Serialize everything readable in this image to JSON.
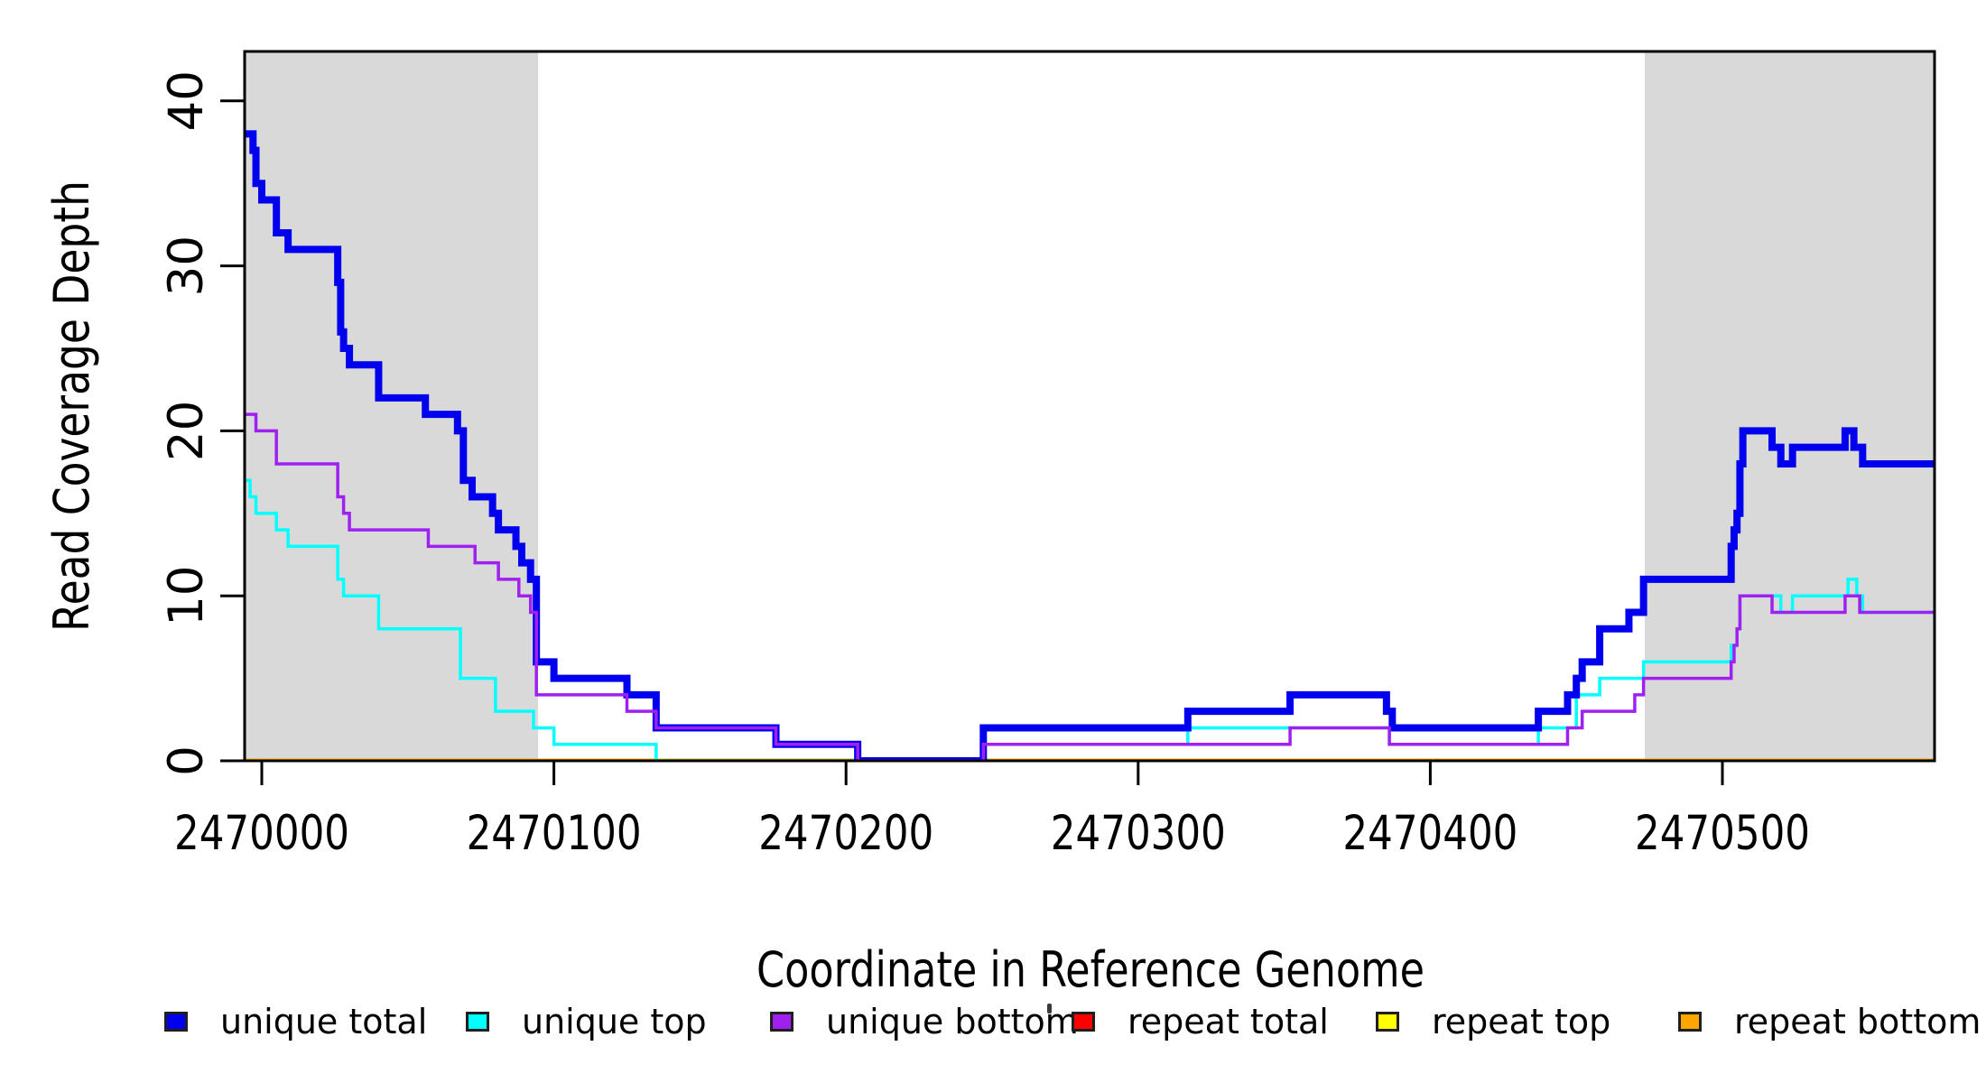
{
  "chart_data": {
    "type": "line",
    "subtype": "step-coverage",
    "title": "",
    "xlabel": "Coordinate in Reference Genome",
    "ylabel": "Read Coverage Depth",
    "xlim": [
      2469994,
      2470573
    ],
    "ylim": [
      0,
      43
    ],
    "x_ticks": [
      2470000,
      2470100,
      2470200,
      2470300,
      2470400,
      2470500
    ],
    "y_ticks": [
      0,
      10,
      20,
      30,
      40
    ],
    "grid": false,
    "background_color": "#FFFFFF",
    "band_color": "#D9D9D9",
    "axis_color": "#000000",
    "shaded_regions": [
      {
        "x0": 2469994,
        "x1": 2470094.6
      },
      {
        "x0": 2470473.4,
        "x1": 2470573
      }
    ],
    "draw_order": [
      "repeat total",
      "repeat top",
      "repeat bottom",
      "unique top",
      "unique total",
      "unique bottom"
    ],
    "series": [
      {
        "name": "unique total",
        "color": "#0000EE",
        "width": 8,
        "steps": [
          [
            2469994,
            38
          ],
          [
            2469997,
            37
          ],
          [
            2469998,
            35
          ],
          [
            2470000,
            34
          ],
          [
            2470005,
            32
          ],
          [
            2470009,
            31
          ],
          [
            2470026,
            29
          ],
          [
            2470027,
            26
          ],
          [
            2470028,
            25
          ],
          [
            2470030,
            24
          ],
          [
            2470040,
            22
          ],
          [
            2470056,
            21
          ],
          [
            2470067,
            20
          ],
          [
            2470069,
            17
          ],
          [
            2470072,
            16
          ],
          [
            2470079,
            15
          ],
          [
            2470081,
            14
          ],
          [
            2470087,
            13
          ],
          [
            2470089,
            12
          ],
          [
            2470092,
            11
          ],
          [
            2470094,
            6
          ],
          [
            2470100,
            5
          ],
          [
            2470125,
            4
          ],
          [
            2470135,
            2
          ],
          [
            2470176,
            1
          ],
          [
            2470204,
            0
          ],
          [
            2470247,
            2
          ],
          [
            2470317,
            3
          ],
          [
            2470352,
            4
          ],
          [
            2470385,
            3
          ],
          [
            2470387,
            2
          ],
          [
            2470437,
            3
          ],
          [
            2470447,
            4
          ],
          [
            2470450,
            5
          ],
          [
            2470452,
            6
          ],
          [
            2470458,
            8
          ],
          [
            2470468,
            9
          ],
          [
            2470473,
            11
          ],
          [
            2470503,
            13
          ],
          [
            2470504,
            14
          ],
          [
            2470505,
            15
          ],
          [
            2470506,
            18
          ],
          [
            2470507,
            20
          ],
          [
            2470517,
            19
          ],
          [
            2470520,
            18
          ],
          [
            2470524,
            19
          ],
          [
            2470542,
            20
          ],
          [
            2470545,
            19
          ],
          [
            2470548,
            18
          ]
        ]
      },
      {
        "name": "unique top",
        "color": "#00FFFF",
        "width": 3.5,
        "steps": [
          [
            2469994,
            17
          ],
          [
            2469996,
            16
          ],
          [
            2469998,
            15
          ],
          [
            2470005,
            14
          ],
          [
            2470009,
            13
          ],
          [
            2470026,
            11
          ],
          [
            2470028,
            10
          ],
          [
            2470040,
            8
          ],
          [
            2470068,
            5
          ],
          [
            2470080,
            3
          ],
          [
            2470093,
            2
          ],
          [
            2470100,
            1
          ],
          [
            2470135,
            0
          ],
          [
            2470247,
            1
          ],
          [
            2470317,
            2
          ],
          [
            2470386,
            1
          ],
          [
            2470437,
            2
          ],
          [
            2470450,
            4
          ],
          [
            2470458,
            5
          ],
          [
            2470473,
            6
          ],
          [
            2470503,
            7
          ],
          [
            2470505,
            8
          ],
          [
            2470506,
            10
          ],
          [
            2470520,
            9
          ],
          [
            2470524,
            10
          ],
          [
            2470543,
            11
          ],
          [
            2470546,
            10
          ],
          [
            2470548,
            9
          ]
        ]
      },
      {
        "name": "unique bottom",
        "color": "#A020F0",
        "width": 3.5,
        "steps": [
          [
            2469994,
            21
          ],
          [
            2469998,
            20
          ],
          [
            2470005,
            18
          ],
          [
            2470026,
            16
          ],
          [
            2470028,
            15
          ],
          [
            2470030,
            14
          ],
          [
            2470057,
            13
          ],
          [
            2470073,
            12
          ],
          [
            2470081,
            11
          ],
          [
            2470088,
            10
          ],
          [
            2470092,
            9
          ],
          [
            2470094,
            4
          ],
          [
            2470125,
            3
          ],
          [
            2470135,
            2
          ],
          [
            2470176,
            1
          ],
          [
            2470204,
            0
          ],
          [
            2470247,
            1
          ],
          [
            2470352,
            2
          ],
          [
            2470386,
            1
          ],
          [
            2470447,
            2
          ],
          [
            2470452,
            3
          ],
          [
            2470470,
            4
          ],
          [
            2470473,
            5
          ],
          [
            2470503,
            6
          ],
          [
            2470504,
            7
          ],
          [
            2470505,
            8
          ],
          [
            2470506,
            10
          ],
          [
            2470517,
            9
          ],
          [
            2470542,
            10
          ],
          [
            2470547,
            9
          ]
        ]
      },
      {
        "name": "repeat total",
        "color": "#FF0000",
        "width": 5,
        "steps": [
          [
            2469994,
            0
          ]
        ]
      },
      {
        "name": "repeat top",
        "color": "#FFFF00",
        "width": 5,
        "steps": [
          [
            2469994,
            0
          ]
        ]
      },
      {
        "name": "repeat bottom",
        "color": "#FFA500",
        "width": 5,
        "steps": [
          [
            2469994,
            0
          ]
        ]
      }
    ],
    "legend": {
      "position": "bottom",
      "items": [
        {
          "label": "unique total",
          "color": "#0000EE"
        },
        {
          "label": "unique top",
          "color": "#00FFFF"
        },
        {
          "label": "unique bottom",
          "color": "#A020F0"
        },
        {
          "label": "repeat total",
          "color": "#FF0000"
        },
        {
          "label": "repeat top",
          "color": "#FFFF00"
        },
        {
          "label": "repeat bottom",
          "color": "#FFA500"
        }
      ]
    }
  }
}
